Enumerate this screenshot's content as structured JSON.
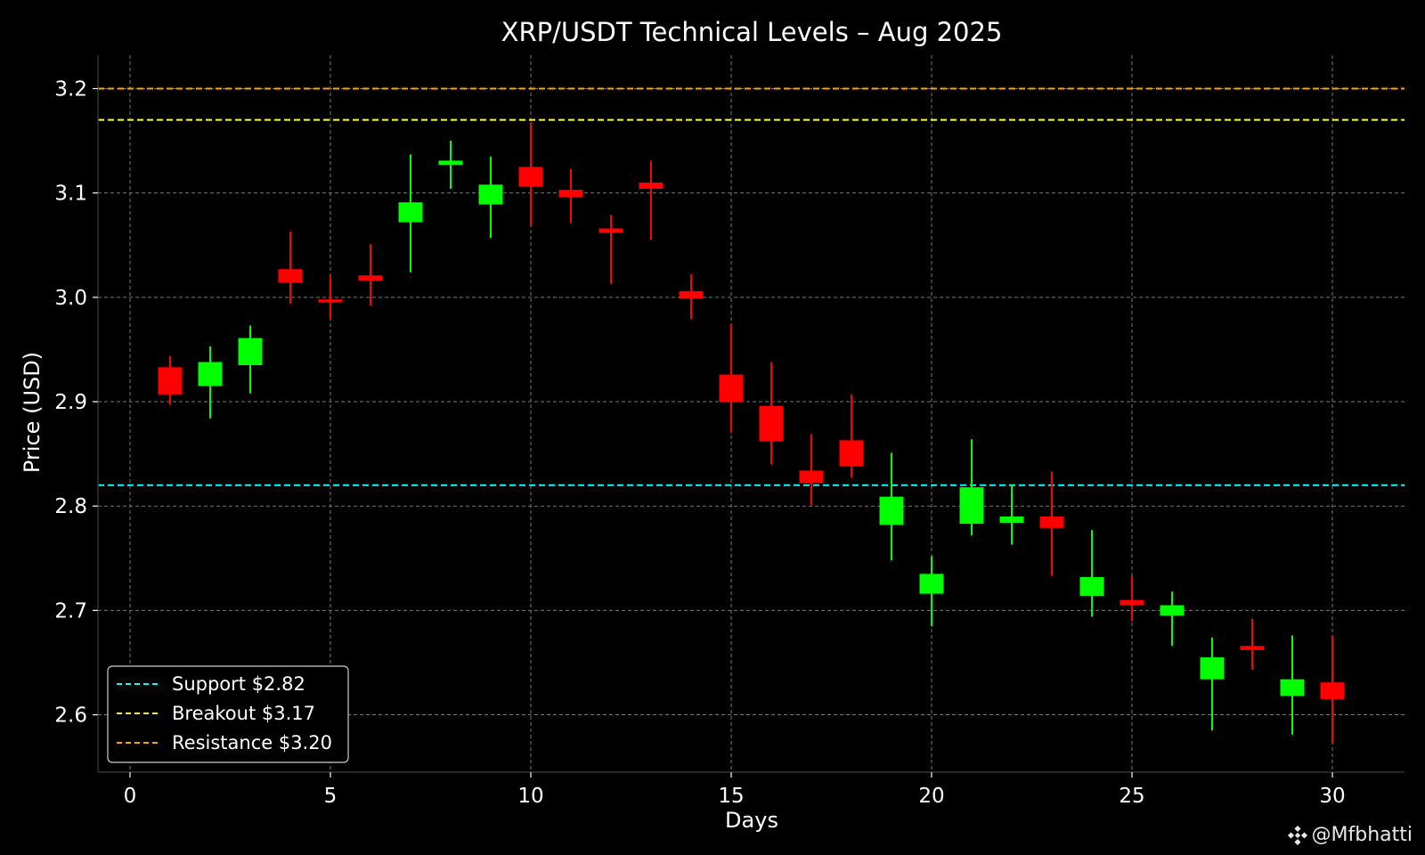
{
  "chart_data": {
    "type": "candlestick",
    "title": "XRP/USDT Technical Levels – Aug 2025",
    "xlabel": "Days",
    "ylabel": "Price (USD)",
    "xlim": [
      -0.8,
      31.8
    ],
    "ylim": [
      2.545,
      3.232
    ],
    "xticks": [
      0,
      5,
      10,
      15,
      20,
      25,
      30
    ],
    "yticks": [
      2.6,
      2.7,
      2.8,
      2.9,
      3.0,
      3.1,
      3.2
    ],
    "grid": true,
    "background": "#000000",
    "up_color": "#00ff00",
    "down_color": "#ff0000",
    "candles": [
      {
        "day": 1,
        "open": 2.933,
        "high": 2.944,
        "low": 2.897,
        "close": 2.907
      },
      {
        "day": 2,
        "open": 2.915,
        "high": 2.953,
        "low": 2.884,
        "close": 2.938
      },
      {
        "day": 3,
        "open": 2.935,
        "high": 2.973,
        "low": 2.908,
        "close": 2.961
      },
      {
        "day": 4,
        "open": 3.027,
        "high": 3.063,
        "low": 2.994,
        "close": 3.014
      },
      {
        "day": 5,
        "open": 2.998,
        "high": 3.021,
        "low": 2.979,
        "close": 2.995
      },
      {
        "day": 6,
        "open": 3.021,
        "high": 3.051,
        "low": 2.992,
        "close": 3.016
      },
      {
        "day": 7,
        "open": 3.072,
        "high": 3.137,
        "low": 3.024,
        "close": 3.091
      },
      {
        "day": 8,
        "open": 3.127,
        "high": 3.15,
        "low": 3.104,
        "close": 3.131
      },
      {
        "day": 9,
        "open": 3.089,
        "high": 3.135,
        "low": 3.057,
        "close": 3.108
      },
      {
        "day": 10,
        "open": 3.125,
        "high": 3.168,
        "low": 3.068,
        "close": 3.106
      },
      {
        "day": 11,
        "open": 3.103,
        "high": 3.123,
        "low": 3.071,
        "close": 3.096
      },
      {
        "day": 12,
        "open": 3.066,
        "high": 3.079,
        "low": 3.013,
        "close": 3.062
      },
      {
        "day": 13,
        "open": 3.11,
        "high": 3.131,
        "low": 3.055,
        "close": 3.104
      },
      {
        "day": 14,
        "open": 3.006,
        "high": 3.022,
        "low": 2.979,
        "close": 2.999
      },
      {
        "day": 15,
        "open": 2.926,
        "high": 2.974,
        "low": 2.87,
        "close": 2.9
      },
      {
        "day": 16,
        "open": 2.896,
        "high": 2.938,
        "low": 2.84,
        "close": 2.862
      },
      {
        "day": 17,
        "open": 2.834,
        "high": 2.869,
        "low": 2.801,
        "close": 2.822
      },
      {
        "day": 18,
        "open": 2.863,
        "high": 2.907,
        "low": 2.827,
        "close": 2.838
      },
      {
        "day": 19,
        "open": 2.782,
        "high": 2.851,
        "low": 2.748,
        "close": 2.809
      },
      {
        "day": 20,
        "open": 2.716,
        "high": 2.752,
        "low": 2.685,
        "close": 2.735
      },
      {
        "day": 21,
        "open": 2.783,
        "high": 2.864,
        "low": 2.772,
        "close": 2.818
      },
      {
        "day": 22,
        "open": 2.784,
        "high": 2.821,
        "low": 2.763,
        "close": 2.79
      },
      {
        "day": 23,
        "open": 2.79,
        "high": 2.833,
        "low": 2.733,
        "close": 2.779
      },
      {
        "day": 24,
        "open": 2.714,
        "high": 2.777,
        "low": 2.694,
        "close": 2.732
      },
      {
        "day": 25,
        "open": 2.71,
        "high": 2.733,
        "low": 2.69,
        "close": 2.705
      },
      {
        "day": 26,
        "open": 2.695,
        "high": 2.718,
        "low": 2.666,
        "close": 2.705
      },
      {
        "day": 27,
        "open": 2.634,
        "high": 2.674,
        "low": 2.585,
        "close": 2.655
      },
      {
        "day": 28,
        "open": 2.666,
        "high": 2.692,
        "low": 2.643,
        "close": 2.662
      },
      {
        "day": 29,
        "open": 2.618,
        "high": 2.676,
        "low": 2.581,
        "close": 2.634
      },
      {
        "day": 30,
        "open": 2.631,
        "high": 2.676,
        "low": 2.573,
        "close": 2.615
      }
    ],
    "levels": [
      {
        "name": "Support $2.82",
        "value": 2.82,
        "color": "#00ffff"
      },
      {
        "name": "Breakout $3.17",
        "value": 3.17,
        "color": "#ffff33"
      },
      {
        "name": "Resistance $3.20",
        "value": 3.2,
        "color": "#ffa500"
      }
    ],
    "legend_position": "lower-left"
  },
  "watermark": {
    "text": "@Mfbhatti",
    "icon": "binance-diamond-icon"
  }
}
